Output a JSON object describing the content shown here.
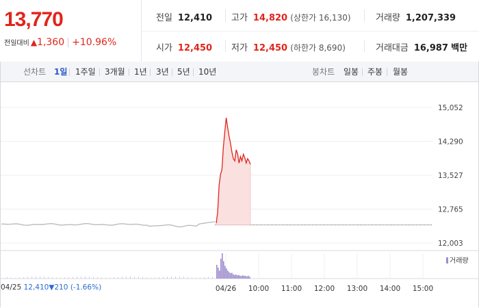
{
  "quote": {
    "price": "13,770",
    "change_label": "전일대비",
    "change_arrow": "▲",
    "change_value": "1,360",
    "change_pct": "+10.96%"
  },
  "stats": {
    "prev_close_label": "전일",
    "prev_close": "12,410",
    "high_label": "고가",
    "high": "14,820",
    "upper_limit": "(상한가 16,130)",
    "volume_label": "거래량",
    "volume": "1,207,339",
    "open_label": "시가",
    "open": "12,450",
    "low_label": "저가",
    "low": "12,450",
    "lower_limit": "(하한가 8,690)",
    "amount_label": "거래대금",
    "amount": "16,987",
    "amount_unit": "백만"
  },
  "tabs": {
    "line_label": "선차트",
    "line_tabs": [
      "1일",
      "1주일",
      "3개월",
      "1년",
      "3년",
      "5년",
      "10년"
    ],
    "selected": "1일",
    "candle_label": "봉차트",
    "candle_tabs": [
      "일봉",
      "주봉",
      "월봉"
    ]
  },
  "footer": {
    "prev_date": "04/25",
    "prev_price": "12,410",
    "prev_arrow": "▼",
    "prev_change": "210",
    "prev_pct": "(-1.66%)",
    "volume_legend": "거래량"
  },
  "colors": {
    "up": "#e0251b",
    "down": "#2a6bd1",
    "area": "#fbe0e0",
    "volume": "#9d8ccc"
  },
  "chart_data": {
    "type": "line",
    "y_ticks": [
      "15,052",
      "14,290",
      "13,527",
      "12,765",
      "12,003"
    ],
    "ylim": [
      12003,
      15052
    ],
    "x_ticks": [
      "04/26",
      "10:00",
      "11:00",
      "12:00",
      "13:00",
      "14:00",
      "15:00"
    ],
    "reference_line": 12410,
    "series": [
      {
        "values": [
          12450,
          12700,
          13300,
          13550,
          13650,
          14150,
          14500,
          14820,
          14600,
          14400,
          14250,
          14050,
          13900,
          13850,
          14100,
          14000,
          13800,
          13950,
          13850,
          14000,
          13920,
          13800,
          13900,
          13850,
          13770
        ]
      }
    ],
    "volume": [
      38,
      30,
      22,
      55,
      70,
      48,
      35,
      28,
      22,
      18,
      15,
      16,
      12,
      10,
      11,
      9,
      10,
      8,
      7,
      9,
      8,
      7,
      6,
      8,
      5
    ]
  }
}
